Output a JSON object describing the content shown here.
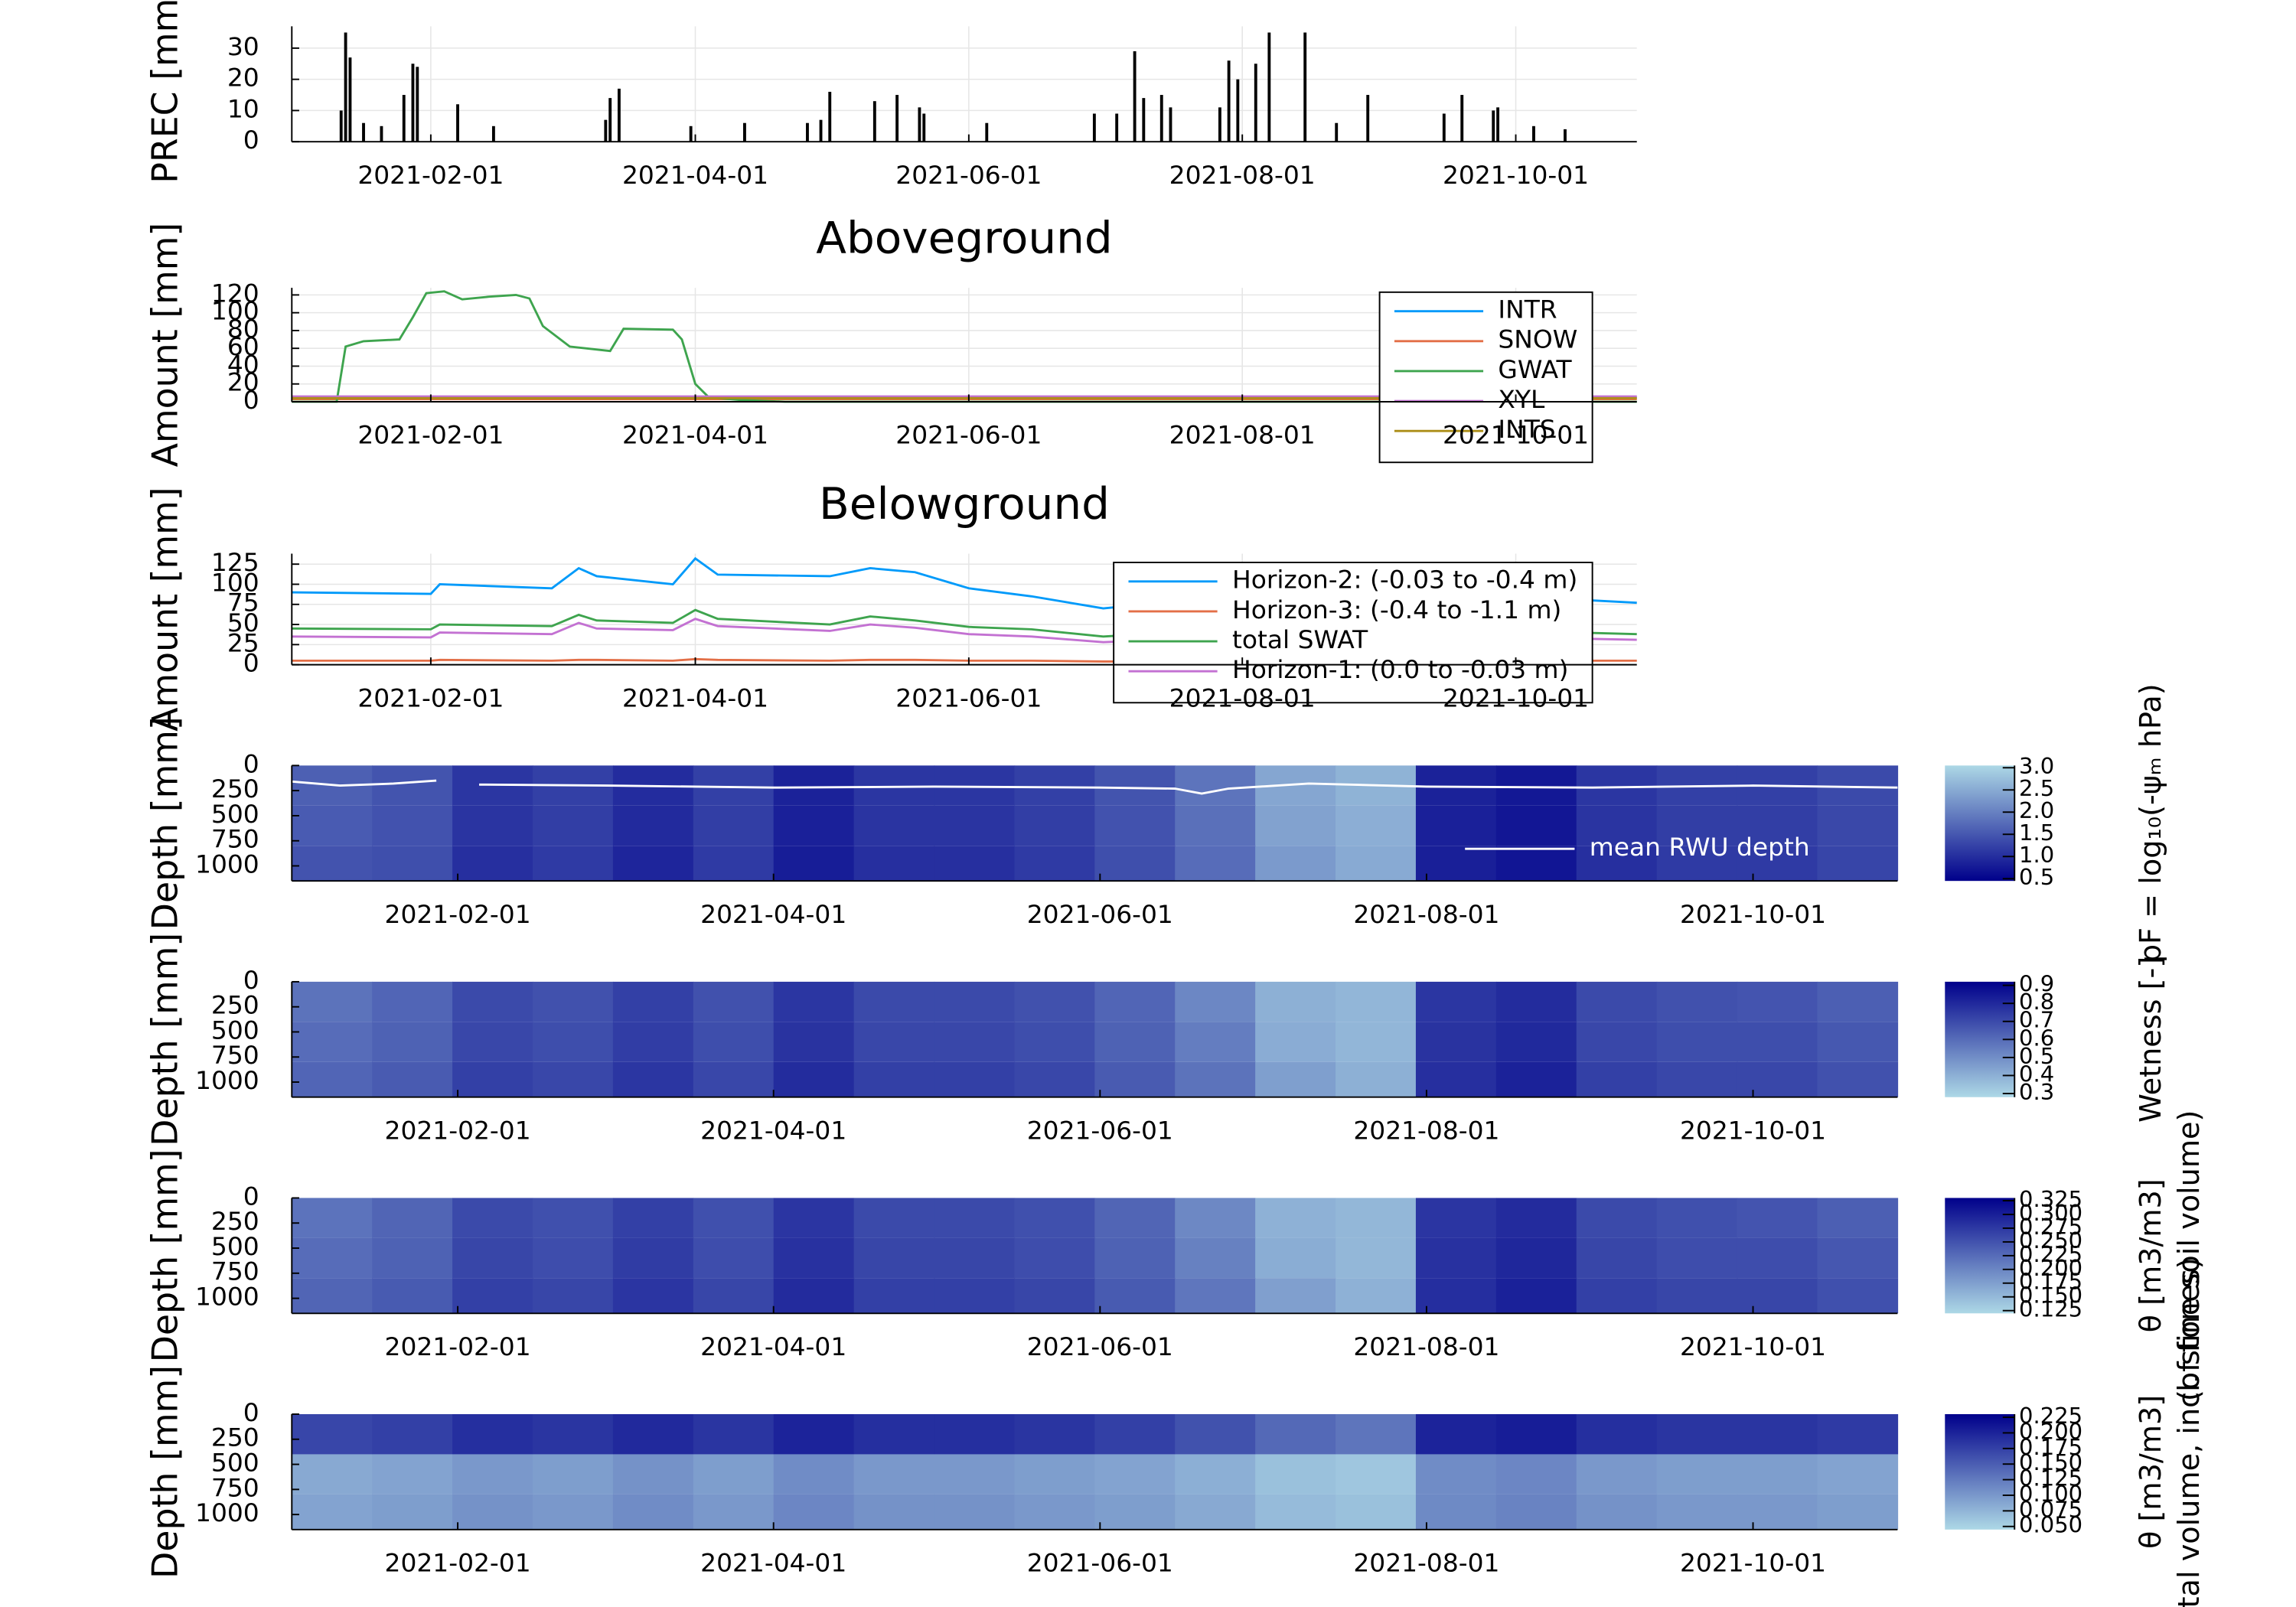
{
  "chart_data": [
    {
      "type": "bar",
      "ylabel": "PREC [mm]",
      "color": "#000000",
      "grid": true,
      "xlim": [
        "2021-01-01",
        "2021-10-28"
      ],
      "xticks": [
        "2021-02-01",
        "2021-04-01",
        "2021-06-01",
        "2021-08-01",
        "2021-10-01"
      ],
      "ylim": [
        0,
        37
      ],
      "yticks": [
        0,
        10,
        20,
        30
      ],
      "x": [
        "2021-01-12",
        "2021-01-13",
        "2021-01-14",
        "2021-01-17",
        "2021-01-21",
        "2021-01-26",
        "2021-01-28",
        "2021-01-29",
        "2021-02-07",
        "2021-02-15",
        "2021-03-12",
        "2021-03-13",
        "2021-03-15",
        "2021-03-31",
        "2021-04-12",
        "2021-04-26",
        "2021-04-29",
        "2021-05-01",
        "2021-05-11",
        "2021-05-16",
        "2021-05-21",
        "2021-05-22",
        "2021-06-05",
        "2021-06-29",
        "2021-07-04",
        "2021-07-08",
        "2021-07-10",
        "2021-07-14",
        "2021-07-16",
        "2021-07-27",
        "2021-07-29",
        "2021-07-31",
        "2021-08-04",
        "2021-08-07",
        "2021-08-15",
        "2021-08-22",
        "2021-08-29",
        "2021-09-15",
        "2021-09-19",
        "2021-09-26",
        "2021-09-27",
        "2021-10-05",
        "2021-10-12"
      ],
      "values": [
        10,
        35,
        27,
        6,
        5,
        15,
        25,
        24,
        12,
        5,
        7,
        14,
        17,
        5,
        6,
        6,
        7,
        16,
        13,
        15,
        11,
        9,
        6,
        9,
        9,
        29,
        14,
        15,
        11,
        11,
        26,
        20,
        25,
        35,
        35,
        6,
        15,
        9,
        15,
        10,
        11,
        5,
        4
      ]
    },
    {
      "type": "line",
      "title": "Aboveground",
      "ylabel": "Amount [mm]",
      "grid": true,
      "legend": "topright",
      "xlim": [
        "2021-01-01",
        "2021-10-28"
      ],
      "xticks": [
        "2021-02-01",
        "2021-04-01",
        "2021-06-01",
        "2021-08-01",
        "2021-10-01"
      ],
      "ylim": [
        0,
        128
      ],
      "yticks": [
        0,
        20,
        40,
        60,
        80,
        100,
        120
      ],
      "x": [
        "2021-01-01",
        "2021-01-11",
        "2021-01-13",
        "2021-01-17",
        "2021-01-25",
        "2021-01-28",
        "2021-01-31",
        "2021-02-04",
        "2021-02-08",
        "2021-02-14",
        "2021-02-20",
        "2021-02-23",
        "2021-02-26",
        "2021-03-04",
        "2021-03-13",
        "2021-03-16",
        "2021-03-27",
        "2021-03-29",
        "2021-04-01",
        "2021-04-04",
        "2021-04-11",
        "2021-04-21",
        "2021-10-28"
      ],
      "series": [
        {
          "name": "INTR",
          "color": "#009afa",
          "values": [
            5,
            5,
            5,
            5,
            5,
            5,
            5,
            5,
            5,
            5,
            5,
            5,
            5,
            5,
            5,
            5,
            5,
            5,
            5,
            5,
            5,
            5,
            5
          ]
        },
        {
          "name": "SNOW",
          "color": "#e36f47",
          "values": [
            3,
            3,
            3,
            3,
            3,
            3,
            3,
            3,
            3,
            3,
            3,
            3,
            3,
            3,
            3,
            3,
            3,
            3,
            3,
            3,
            3,
            3,
            3
          ]
        },
        {
          "name": "GWAT",
          "color": "#3ea44e",
          "values": [
            0,
            0,
            62,
            68,
            70,
            95,
            122,
            124,
            115,
            118,
            120,
            116,
            85,
            62,
            57,
            82,
            81,
            70,
            20,
            5,
            2,
            0,
            0
          ]
        },
        {
          "name": "XYL",
          "color": "#c371d2",
          "values": [
            6,
            6,
            6,
            6,
            6,
            6,
            6,
            6,
            6,
            6,
            6,
            6,
            6,
            6,
            6,
            6,
            6,
            6,
            6,
            6,
            6,
            6,
            6
          ]
        },
        {
          "name": "INTS",
          "color": "#ac8e18",
          "values": [
            4,
            4,
            4,
            4,
            4,
            4,
            4,
            4,
            4,
            4,
            4,
            4,
            4,
            4,
            4,
            4,
            4,
            4,
            4,
            4,
            4,
            4,
            4
          ]
        }
      ]
    },
    {
      "type": "line",
      "title": "Belowground",
      "ylabel": "Amount [mm]",
      "grid": true,
      "legend": "bottomright",
      "xlim": [
        "2021-01-01",
        "2021-10-28"
      ],
      "xticks": [
        "2021-02-01",
        "2021-04-01",
        "2021-06-01",
        "2021-08-01",
        "2021-10-01"
      ],
      "ylim": [
        0,
        138
      ],
      "yticks": [
        0,
        25,
        50,
        75,
        100,
        125
      ],
      "x": [
        "2021-01-01",
        "2021-02-01",
        "2021-02-03",
        "2021-02-28",
        "2021-03-06",
        "2021-03-10",
        "2021-03-27",
        "2021-04-01",
        "2021-04-06",
        "2021-05-01",
        "2021-05-10",
        "2021-05-20",
        "2021-06-01",
        "2021-06-15",
        "2021-07-01",
        "2021-07-10",
        "2021-08-01",
        "2021-08-15",
        "2021-09-01",
        "2021-09-15",
        "2021-10-01",
        "2021-10-28"
      ],
      "series": [
        {
          "name": "Horizon-2: (-0.03 to -0.4 m)",
          "color": "#009afa",
          "values": [
            90,
            88,
            100,
            95,
            120,
            110,
            100,
            132,
            112,
            110,
            120,
            115,
            95,
            85,
            70,
            75,
            95,
            90,
            85,
            88,
            85,
            77
          ]
        },
        {
          "name": "Horizon-3: (-0.4 to -1.1 m)",
          "color": "#e36f47",
          "values": [
            5,
            5,
            6,
            5,
            6,
            6,
            5,
            7,
            6,
            5,
            6,
            6,
            5,
            5,
            4,
            4,
            5,
            5,
            5,
            5,
            5,
            5
          ]
        },
        {
          "name": "total SWAT",
          "color": "#3ea44e",
          "values": [
            45,
            44,
            50,
            48,
            62,
            55,
            52,
            68,
            57,
            50,
            60,
            55,
            47,
            44,
            35,
            38,
            48,
            45,
            42,
            43,
            42,
            38
          ]
        },
        {
          "name": "Horizon-1: (0.0 to -0.03 m)",
          "color": "#c371d2",
          "values": [
            35,
            34,
            40,
            38,
            52,
            45,
            43,
            57,
            48,
            42,
            50,
            46,
            38,
            35,
            28,
            30,
            38,
            36,
            34,
            35,
            34,
            31
          ]
        }
      ]
    },
    {
      "type": "heatmap",
      "ylabel": "Depth [mm]",
      "yflip": true,
      "xlim": [
        "2021-01-01",
        "2021-10-28"
      ],
      "xticks": [
        "2021-02-01",
        "2021-04-01",
        "2021-06-01",
        "2021-08-01",
        "2021-10-01"
      ],
      "ylim": [
        0,
        1150
      ],
      "yticks": [
        0,
        250,
        500,
        750,
        1000
      ],
      "x_bins": [
        "2021-01-01",
        "2021-01-16",
        "2021-01-31",
        "2021-02-15",
        "2021-03-02",
        "2021-03-17",
        "2021-04-01",
        "2021-04-16",
        "2021-05-01",
        "2021-05-16",
        "2021-05-31",
        "2021-06-15",
        "2021-06-30",
        "2021-07-15",
        "2021-07-30",
        "2021-08-14",
        "2021-08-29",
        "2021-09-13",
        "2021-09-28",
        "2021-10-13",
        "2021-10-28"
      ],
      "y_bins": [
        0,
        400,
        800,
        1150
      ],
      "values": [
        [
          1.6,
          1.46,
          1.1,
          1.22,
          0.98,
          1.22,
          0.86,
          1.1,
          1.1,
          1.22,
          1.46,
          1.85,
          2.45,
          2.6,
          0.86,
          0.74,
          1.1,
          1.22,
          1.22,
          1.34
        ],
        [
          1.55,
          1.44,
          1.08,
          1.2,
          0.96,
          1.2,
          0.84,
          1.08,
          1.08,
          1.2,
          1.44,
          1.8,
          2.4,
          2.55,
          0.84,
          0.72,
          1.08,
          1.2,
          1.2,
          1.32
        ],
        [
          1.45,
          1.4,
          1.02,
          1.15,
          0.9,
          1.15,
          0.8,
          1.02,
          1.02,
          1.15,
          1.4,
          1.75,
          2.3,
          2.5,
          0.82,
          0.7,
          1.02,
          1.15,
          1.15,
          1.28
        ]
      ],
      "clim": [
        0.45,
        3.05
      ],
      "colormap": [
        "#00008b",
        "#add8e6"
      ],
      "colorbar_label": [
        "pF = log₁₀(-ψₘ hPa)"
      ],
      "colorbar_ticks": [
        0.5,
        {
          "value": 1,
          "label": "1.0"
        },
        1.5,
        {
          "value": 2,
          "label": "2.0"
        },
        2.5,
        {
          "value": 3,
          "label": "3.0"
        }
      ],
      "line": {
        "name": "mean RWU depth",
        "color": "#ffffff",
        "x": [
          "2021-01-01",
          "2021-01-10",
          "2021-01-20",
          "2021-01-28",
          "2021-02-01",
          "2021-02-05",
          "2021-03-01",
          "2021-04-01",
          "2021-05-01",
          "2021-06-01",
          "2021-06-15",
          "2021-06-20",
          "2021-06-25",
          "2021-07-10",
          "2021-08-01",
          "2021-09-01",
          "2021-10-01",
          "2021-10-28"
        ],
        "values": [
          160,
          200,
          180,
          150,
          null,
          190,
          200,
          220,
          210,
          220,
          230,
          280,
          230,
          180,
          210,
          220,
          200,
          220
        ]
      }
    },
    {
      "type": "heatmap",
      "ylabel": "Depth [mm]",
      "yflip": true,
      "xlim": [
        "2021-01-01",
        "2021-10-28"
      ],
      "xticks": [
        "2021-02-01",
        "2021-04-01",
        "2021-06-01",
        "2021-08-01",
        "2021-10-01"
      ],
      "ylim": [
        0,
        1150
      ],
      "yticks": [
        0,
        250,
        500,
        750,
        1000
      ],
      "x_bins": [
        "2021-01-01",
        "2021-01-16",
        "2021-01-31",
        "2021-02-15",
        "2021-03-02",
        "2021-03-17",
        "2021-04-01",
        "2021-04-16",
        "2021-05-01",
        "2021-05-16",
        "2021-05-31",
        "2021-06-15",
        "2021-06-30",
        "2021-07-15",
        "2021-07-30",
        "2021-08-14",
        "2021-08-29",
        "2021-09-13",
        "2021-09-28",
        "2021-10-13",
        "2021-10-28"
      ],
      "y_bins": [
        0,
        400,
        800,
        1150
      ],
      "values": [
        [
          0.58,
          0.62,
          0.7,
          0.68,
          0.73,
          0.68,
          0.76,
          0.7,
          0.7,
          0.68,
          0.62,
          0.52,
          0.4,
          0.38,
          0.76,
          0.79,
          0.7,
          0.68,
          0.67,
          0.64
        ],
        [
          0.6,
          0.63,
          0.71,
          0.69,
          0.74,
          0.69,
          0.77,
          0.71,
          0.71,
          0.69,
          0.63,
          0.55,
          0.41,
          0.38,
          0.77,
          0.8,
          0.71,
          0.69,
          0.69,
          0.66
        ],
        [
          0.62,
          0.65,
          0.73,
          0.71,
          0.76,
          0.71,
          0.79,
          0.73,
          0.73,
          0.71,
          0.65,
          0.58,
          0.45,
          0.4,
          0.78,
          0.82,
          0.73,
          0.71,
          0.71,
          0.68
        ]
      ],
      "clim": [
        0.28,
        0.92
      ],
      "colormap": [
        "#add8e6",
        "#00008b"
      ],
      "colorbar_label": [
        "Wetness [-]"
      ],
      "colorbar_ticks": [
        0.3,
        0.4,
        0.5,
        0.6,
        0.7,
        0.8,
        0.9
      ]
    },
    {
      "type": "heatmap",
      "ylabel": "Depth [mm]",
      "yflip": true,
      "xlim": [
        "2021-01-01",
        "2021-10-28"
      ],
      "xticks": [
        "2021-02-01",
        "2021-04-01",
        "2021-06-01",
        "2021-08-01",
        "2021-10-01"
      ],
      "ylim": [
        0,
        1150
      ],
      "yticks": [
        0,
        250,
        500,
        750,
        1000
      ],
      "x_bins": [
        "2021-01-01",
        "2021-01-16",
        "2021-01-31",
        "2021-02-15",
        "2021-03-02",
        "2021-03-17",
        "2021-04-01",
        "2021-04-16",
        "2021-05-01",
        "2021-05-16",
        "2021-05-31",
        "2021-06-15",
        "2021-06-30",
        "2021-07-15",
        "2021-07-30",
        "2021-08-14",
        "2021-08-29",
        "2021-09-13",
        "2021-09-28",
        "2021-10-13",
        "2021-10-28"
      ],
      "y_bins": [
        0,
        400,
        800,
        1150
      ],
      "values": [
        [
          0.218,
          0.232,
          0.258,
          0.252,
          0.268,
          0.252,
          0.278,
          0.258,
          0.258,
          0.252,
          0.232,
          0.198,
          0.158,
          0.152,
          0.278,
          0.288,
          0.258,
          0.252,
          0.248,
          0.238
        ],
        [
          0.225,
          0.235,
          0.262,
          0.255,
          0.272,
          0.255,
          0.282,
          0.262,
          0.262,
          0.255,
          0.235,
          0.205,
          0.162,
          0.152,
          0.282,
          0.292,
          0.262,
          0.255,
          0.255,
          0.245
        ],
        [
          0.232,
          0.242,
          0.268,
          0.262,
          0.278,
          0.262,
          0.288,
          0.268,
          0.268,
          0.262,
          0.242,
          0.215,
          0.175,
          0.158,
          0.285,
          0.298,
          0.268,
          0.262,
          0.262,
          0.252
        ]
      ],
      "clim": [
        0.12,
        0.33
      ],
      "colormap": [
        "#add8e6",
        "#00008b"
      ],
      "colorbar_label": [
        "θ [m3/m3]",
        "(of fine soil volume)"
      ],
      "colorbar_ticks": [
        0.125,
        {
          "value": 0.15,
          "label": "0.150"
        },
        0.175,
        {
          "value": 0.2,
          "label": "0.200"
        },
        0.225,
        {
          "value": 0.25,
          "label": "0.250"
        },
        0.275,
        {
          "value": 0.3,
          "label": "0.300"
        },
        0.325
      ]
    },
    {
      "type": "heatmap",
      "ylabel": "Depth [mm]",
      "yflip": true,
      "xlim": [
        "2021-01-01",
        "2021-10-28"
      ],
      "xticks": [
        "2021-02-01",
        "2021-04-01",
        "2021-06-01",
        "2021-08-01",
        "2021-10-01"
      ],
      "ylim": [
        0,
        1150
      ],
      "yticks": [
        0,
        250,
        500,
        750,
        1000
      ],
      "x_bins": [
        "2021-01-01",
        "2021-01-16",
        "2021-01-31",
        "2021-02-15",
        "2021-03-02",
        "2021-03-17",
        "2021-04-01",
        "2021-04-16",
        "2021-05-01",
        "2021-05-16",
        "2021-05-31",
        "2021-06-15",
        "2021-06-30",
        "2021-07-15",
        "2021-07-30",
        "2021-08-14",
        "2021-08-29",
        "2021-09-13",
        "2021-09-28",
        "2021-10-13",
        "2021-10-28"
      ],
      "y_bins": [
        0,
        400,
        800,
        1150
      ],
      "values": [
        [
          0.17,
          0.175,
          0.19,
          0.185,
          0.195,
          0.185,
          0.2,
          0.19,
          0.19,
          0.185,
          0.175,
          0.16,
          0.14,
          0.13,
          0.2,
          0.205,
          0.19,
          0.185,
          0.185,
          0.18
        ],
        [
          0.085,
          0.09,
          0.1,
          0.095,
          0.105,
          0.095,
          0.11,
          0.1,
          0.1,
          0.095,
          0.09,
          0.08,
          0.065,
          0.06,
          0.11,
          0.115,
          0.1,
          0.095,
          0.095,
          0.09
        ],
        [
          0.09,
          0.095,
          0.105,
          0.1,
          0.11,
          0.1,
          0.115,
          0.105,
          0.105,
          0.1,
          0.095,
          0.085,
          0.07,
          0.065,
          0.112,
          0.118,
          0.105,
          0.1,
          0.1,
          0.095
        ]
      ],
      "clim": [
        0.045,
        0.23
      ],
      "colormap": [
        "#add8e6",
        "#00008b"
      ],
      "colorbar_label": [
        "θ [m3/m3]",
        "(of total volume, incl. stones)"
      ],
      "colorbar_ticks": [
        {
          "value": 0.05,
          "label": "0.050"
        },
        0.075,
        {
          "value": 0.1,
          "label": "0.100"
        },
        0.125,
        {
          "value": 0.15,
          "label": "0.150"
        },
        0.175,
        {
          "value": 0.2,
          "label": "0.200"
        },
        0.225
      ]
    }
  ]
}
